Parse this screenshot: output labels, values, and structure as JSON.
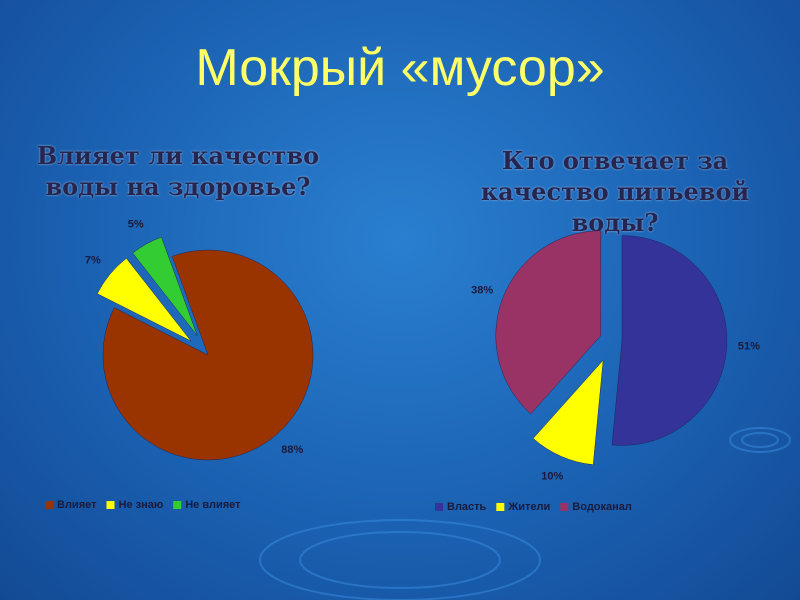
{
  "title": "Мокрый «мусор»",
  "chart_data": [
    {
      "type": "pie",
      "title": "Влияет ли качество воды на здоровье?",
      "categories": [
        "Влияет",
        "Не знаю",
        "Не влияет"
      ],
      "values": [
        88,
        7,
        5
      ],
      "value_labels": [
        "88%",
        "7%",
        "5%"
      ],
      "colors": [
        "#993300",
        "#ffff00",
        "#33cc33"
      ],
      "legend": "bottom"
    },
    {
      "type": "pie",
      "title": "Кто отвечает за качество питьевой воды?",
      "categories": [
        "Власть",
        "Жители",
        "Водоканал"
      ],
      "values": [
        51,
        10,
        38
      ],
      "value_labels": [
        "51%",
        "10%",
        "38%"
      ],
      "colors": [
        "#333399",
        "#ffff00",
        "#993366"
      ],
      "legend": "bottom"
    }
  ]
}
